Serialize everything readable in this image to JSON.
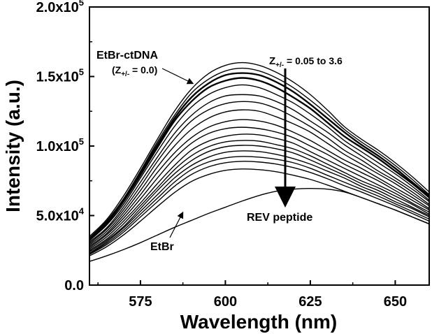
{
  "chart_data": {
    "type": "line",
    "xlabel": "Wavelength (nm)",
    "ylabel": "Intensity (a.u.)",
    "xlim": [
      560,
      660
    ],
    "ylim": [
      0,
      200000
    ],
    "x_ticks": [
      575,
      600,
      625,
      650
    ],
    "y_ticks": [
      {
        "value": 0,
        "mant": "0.0",
        "exp": ""
      },
      {
        "value": 50000,
        "mant": "5.0x10",
        "exp": "4"
      },
      {
        "value": 100000,
        "mant": "1.0x10",
        "exp": "5"
      },
      {
        "value": 150000,
        "mant": "1.5x10",
        "exp": "5"
      },
      {
        "value": 200000,
        "mant": "2.0x10",
        "exp": "5"
      }
    ],
    "grid": false,
    "legend": "none",
    "x": [
      560,
      565,
      570,
      575,
      580,
      585,
      590,
      595,
      600,
      605,
      610,
      615,
      620,
      625,
      630,
      635,
      640,
      645,
      650,
      655,
      660
    ],
    "series": [
      {
        "values": [
          35000,
          47000,
          64000,
          84000,
          105000,
          125000,
          141000,
          152000,
          158000,
          160000,
          158000,
          153000,
          146000,
          137000,
          126000,
          114000,
          105000,
          97000,
          88000,
          78000,
          67000
        ]
      },
      {
        "values": [
          34000,
          46000,
          62000,
          82000,
          103000,
          122000,
          138000,
          148000,
          154000,
          156000,
          154000,
          149000,
          142000,
          133000,
          123000,
          112000,
          103000,
          95000,
          86000,
          76000,
          65000
        ]
      },
      {
        "values": [
          33000,
          45000,
          61000,
          81000,
          101000,
          120000,
          135000,
          145000,
          151000,
          152500,
          151000,
          146000,
          139000,
          130000,
          120000,
          110000,
          101000,
          93000,
          84000,
          74000,
          64000
        ]
      },
      {
        "values": [
          32500,
          44000,
          60000,
          79000,
          99000,
          118000,
          132000,
          142000,
          147000,
          149000,
          147000,
          142000,
          135000,
          127000,
          117000,
          107000,
          99000,
          91000,
          82000,
          73000,
          63000
        ]
      },
      {
        "values": [
          32000,
          43000,
          58000,
          77000,
          96000,
          114000,
          128000,
          137000,
          142000,
          144000,
          142000,
          137000,
          131000,
          123000,
          114000,
          104000,
          96000,
          88000,
          80000,
          71000,
          61000
        ]
      },
      {
        "values": [
          31000,
          41000,
          56000,
          74000,
          92000,
          109000,
          122000,
          131000,
          136000,
          137000,
          136000,
          132000,
          126000,
          118000,
          110000,
          101000,
          93000,
          85000,
          77000,
          69000,
          60000
        ]
      },
      {
        "values": [
          30000,
          40000,
          54000,
          71000,
          89000,
          105000,
          118000,
          126000,
          130500,
          132000,
          131000,
          127000,
          121000,
          114000,
          106000,
          97000,
          90000,
          82000,
          75000,
          67000,
          58000
        ]
      },
      {
        "values": [
          29000,
          38500,
          52000,
          68000,
          85000,
          100000,
          112000,
          120000,
          124500,
          126000,
          125000,
          121000,
          116000,
          110000,
          102000,
          94000,
          87000,
          80000,
          73000,
          65000,
          57000
        ]
      },
      {
        "values": [
          28000,
          37000,
          50000,
          65000,
          81000,
          95000,
          106000,
          113500,
          117500,
          119000,
          118000,
          115000,
          110000,
          104000,
          97000,
          90000,
          84000,
          77000,
          70000,
          63000,
          55000
        ]
      },
      {
        "values": [
          27000,
          36000,
          48000,
          62000,
          77000,
          91000,
          102000,
          109000,
          112500,
          113500,
          112500,
          110000,
          106000,
          100000,
          94000,
          87000,
          81000,
          75000,
          68000,
          61000,
          54000
        ]
      },
      {
        "values": [
          26000,
          34500,
          46000,
          59000,
          73000,
          86000,
          97000,
          103500,
          107000,
          108500,
          108000,
          105500,
          102000,
          96000,
          90000,
          84000,
          78000,
          72000,
          66000,
          59000,
          52500
        ]
      },
      {
        "values": [
          25000,
          33000,
          44000,
          57000,
          70000,
          83000,
          93000,
          99500,
          103000,
          104000,
          103500,
          101000,
          98000,
          93000,
          87000,
          81000,
          75000,
          70000,
          64000,
          58000,
          51000
        ]
      },
      {
        "values": [
          24000,
          32000,
          42000,
          55000,
          68000,
          80000,
          89500,
          96000,
          99500,
          100500,
          100000,
          98000,
          95000,
          90000,
          84500,
          79000,
          73000,
          68000,
          62000,
          56000,
          50000
        ]
      },
      {
        "values": [
          23000,
          31000,
          41000,
          53000,
          65000,
          77000,
          86000,
          92000,
          95500,
          96500,
          96000,
          94000,
          91000,
          87000,
          82000,
          77000,
          71000,
          66000,
          60000,
          55000,
          49000
        ]
      },
      {
        "values": [
          22500,
          30000,
          39500,
          51000,
          62500,
          74000,
          83000,
          88500,
          91500,
          92500,
          92000,
          90500,
          88000,
          84000,
          79000,
          74000,
          69000,
          64000,
          58500,
          53000,
          47500
        ]
      },
      {
        "values": [
          22000,
          29000,
          38000,
          49000,
          60000,
          71000,
          79500,
          85000,
          88000,
          89000,
          88500,
          87000,
          84500,
          81000,
          76500,
          71500,
          67000,
          62000,
          57000,
          51500,
          46000
        ]
      },
      {
        "values": [
          21000,
          27500,
          36000,
          46000,
          56500,
          66500,
          74500,
          79500,
          82500,
          83500,
          83000,
          81500,
          79000,
          76000,
          72000,
          67500,
          63000,
          58500,
          54000,
          49000,
          44000
        ]
      },
      {
        "values": [
          17000,
          21000,
          25500,
          30500,
          36000,
          41500,
          46500,
          51500,
          56000,
          60500,
          64500,
          67500,
          69000,
          69500,
          69000,
          67000,
          63000,
          58500,
          54000,
          49000,
          44000
        ]
      }
    ],
    "annotations": {
      "etbr_ctdna_label": "EtBr-ctDNA",
      "z00_label": "(Z",
      "z00_sub": "+/-",
      "z00_tail": " = 0.0)",
      "z_range_label": "Z",
      "z_range_sub": "+/-",
      "z_range_tail": " = 0.05 to 3.6",
      "rev_label": "REV peptide",
      "etbr_label": "EtBr"
    }
  }
}
